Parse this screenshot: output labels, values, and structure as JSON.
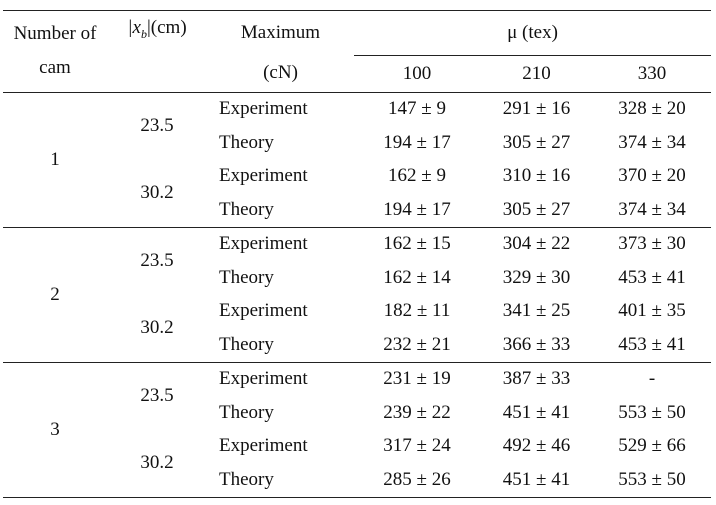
{
  "header": {
    "number_of_cam_line1": "Number of",
    "number_of_cam_line2": "cam",
    "distance_label_prefix": "|x",
    "distance_label_sub": "b",
    "distance_label_suffix": "|(cm)",
    "maximum_line1": "Maximum",
    "maximum_line2": "(cN)",
    "mu_label": "μ  (tex)",
    "mu_values": [
      "100",
      "210",
      "330"
    ]
  },
  "groups": [
    {
      "cam": "1",
      "distances": [
        {
          "value": "23.5",
          "rows": [
            {
              "type": "Experiment",
              "v100": "147 ± 9",
              "v210": "291 ± 16",
              "v330": "328 ± 20"
            },
            {
              "type": "Theory",
              "v100": "194 ± 17",
              "v210": "305 ± 27",
              "v330": "374 ± 34"
            }
          ]
        },
        {
          "value": "30.2",
          "rows": [
            {
              "type": "Experiment",
              "v100": "162 ± 9",
              "v210": "310 ± 16",
              "v330": "370 ± 20"
            },
            {
              "type": "Theory",
              "v100": "194 ± 17",
              "v210": "305 ± 27",
              "v330": "374 ± 34"
            }
          ]
        }
      ]
    },
    {
      "cam": "2",
      "distances": [
        {
          "value": "23.5",
          "rows": [
            {
              "type": "Experiment",
              "v100": "162 ± 15",
              "v210": "304 ± 22",
              "v330": "373 ± 30"
            },
            {
              "type": "Theory",
              "v100": "162 ± 14",
              "v210": "329 ± 30",
              "v330": "453 ± 41"
            }
          ]
        },
        {
          "value": "30.2",
          "rows": [
            {
              "type": "Experiment",
              "v100": "182 ± 11",
              "v210": "341 ± 25",
              "v330": "401 ± 35"
            },
            {
              "type": "Theory",
              "v100": "232 ± 21",
              "v210": "366 ± 33",
              "v330": "453 ± 41"
            }
          ]
        }
      ]
    },
    {
      "cam": "3",
      "distances": [
        {
          "value": "23.5",
          "rows": [
            {
              "type": "Experiment",
              "v100": "231 ± 19",
              "v210": "387 ± 33",
              "v330": "-"
            },
            {
              "type": "Theory",
              "v100": "239 ± 22",
              "v210": "451 ± 41",
              "v330": "553 ± 50"
            }
          ]
        },
        {
          "value": "30.2",
          "rows": [
            {
              "type": "Experiment",
              "v100": "317 ± 24",
              "v210": "492 ± 46",
              "v330": "529 ± 66"
            },
            {
              "type": "Theory",
              "v100": "285 ± 26",
              "v210": "451 ± 41",
              "v330": "553 ± 50"
            }
          ]
        }
      ]
    }
  ]
}
